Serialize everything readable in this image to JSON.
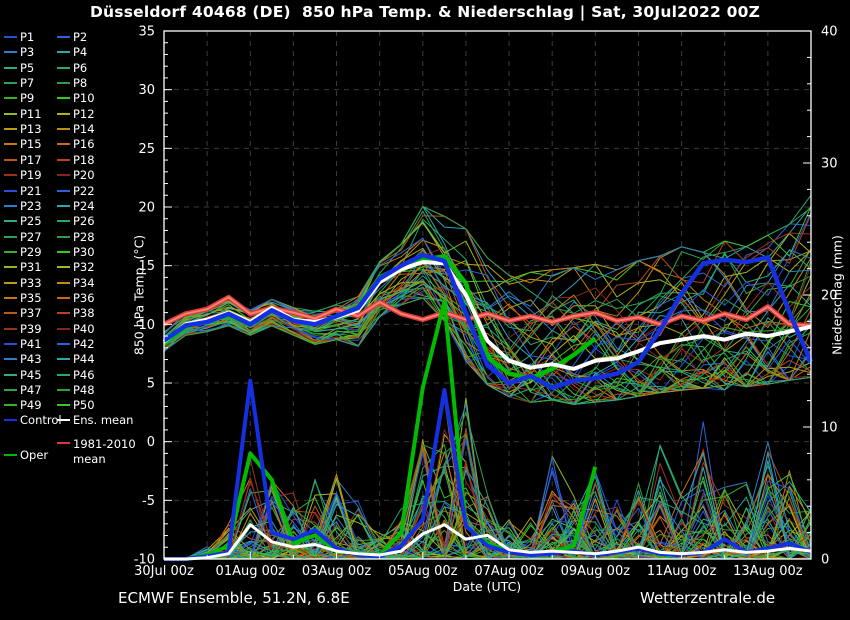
{
  "title": "Düsseldorf 40468 (DE)  850 hPa Temp. & Niederschlag | Sat, 30Jul2022 00Z",
  "footer": {
    "left": "ECMWF Ensemble, 51.2N, 6.8E",
    "right": "Wetterzentrale.de"
  },
  "axes": {
    "x_label": "Date (UTC)",
    "y_left_label": "850 hPa Temp. (°C)",
    "y_right_label": "Niederschlag (mm)",
    "y_left_ticks": [
      35,
      30,
      25,
      20,
      15,
      10,
      5,
      0,
      -5,
      -10
    ],
    "y_right_ticks": [
      40,
      30,
      20,
      10,
      0
    ],
    "x_ticks": [
      {
        "day": 0,
        "label": "30Jul 00z"
      },
      {
        "day": 2,
        "label": "01Aug 00z"
      },
      {
        "day": 4,
        "label": "03Aug 00z"
      },
      {
        "day": 6,
        "label": "05Aug 00z"
      },
      {
        "day": 8,
        "label": "07Aug 00z"
      },
      {
        "day": 10,
        "label": "09Aug 00z"
      },
      {
        "day": 12,
        "label": "11Aug 00z"
      },
      {
        "day": 14,
        "label": "13Aug 00z"
      }
    ]
  },
  "legend": {
    "members": [
      "P1",
      "P2",
      "P3",
      "P4",
      "P5",
      "P6",
      "P7",
      "P8",
      "P9",
      "P10",
      "P11",
      "P12",
      "P13",
      "P14",
      "P15",
      "P16",
      "P17",
      "P18",
      "P19",
      "P20",
      "P21",
      "P22",
      "P23",
      "P24",
      "P25",
      "P26",
      "P27",
      "P28",
      "P29",
      "P30",
      "P31",
      "P32",
      "P33",
      "P34",
      "P35",
      "P36",
      "P37",
      "P38",
      "P39",
      "P40",
      "P41",
      "P42",
      "P43",
      "P44",
      "P45",
      "P46",
      "P47",
      "P48",
      "P49",
      "P50"
    ],
    "control_label": "Control",
    "ens_mean_label": "Ens. mean",
    "clim_label_line1": "1981-2010",
    "clim_label_line2": "mean",
    "oper_label": "Oper"
  },
  "colors": {
    "background": "#000000",
    "frame": "#ffffff",
    "grid": "#3c3c3c",
    "control": "#1430e0",
    "ens_mean": "#ffffff",
    "oper": "#00bb00",
    "clim": "#d83c3c",
    "clim_core": "#ff8070",
    "member_cycle": [
      "#2750d8",
      "#2d62dc",
      "#2f7cc8",
      "#2fa3b4",
      "#2baa8e",
      "#27a76c",
      "#2aa44e",
      "#2ea238",
      "#38ae2c",
      "#3fc32a",
      "#8fba20",
      "#aeb41e",
      "#b89e16",
      "#bd8c12",
      "#c47a10",
      "#c86a10",
      "#c25614",
      "#b44518",
      "#9e3020",
      "#882222"
    ]
  },
  "chart_data": {
    "type": "line",
    "title": "Düsseldorf 40468 (DE) 850 hPa Temp. & Niederschlag, ECMWF ensemble meteogram, run Sat 30Jul2022 00Z",
    "x_unit": "days since 30Jul2022 00Z",
    "x_start": 0,
    "x_step": 0.5,
    "x_range": [
      0,
      15
    ],
    "temp_axis_range": [
      -10,
      35
    ],
    "precip_axis_range": [
      0,
      40
    ],
    "grid": "dashed, every day vertical, every 5°C horizontal",
    "legend_position": "left outside",
    "ensemble_member_count": 50,
    "rng_seed": 1234,
    "series": {
      "temp_ens_mean": [
        8.5,
        10.0,
        10.4,
        11.0,
        10.2,
        11.4,
        10.4,
        10.2,
        10.6,
        11.2,
        13.6,
        14.7,
        15.3,
        15.2,
        12.5,
        8.6,
        6.9,
        6.3,
        6.6,
        6.2,
        6.9,
        7.1,
        7.7,
        8.4,
        8.7,
        9.0,
        8.7,
        9.2,
        9.0,
        9.4,
        9.8
      ],
      "temp_control": [
        8.6,
        9.9,
        10.2,
        10.9,
        10.0,
        11.2,
        10.3,
        10.0,
        10.7,
        11.4,
        13.9,
        15.0,
        15.9,
        15.4,
        11.0,
        6.5,
        5.0,
        5.6,
        4.6,
        5.2,
        5.4,
        5.8,
        6.8,
        9.5,
        12.6,
        15.2,
        15.5,
        15.3,
        15.7,
        11.0,
        6.8
      ],
      "temp_oper": [
        8.3,
        9.8,
        10.3,
        10.8,
        10.1,
        11.3,
        10.4,
        10.1,
        10.6,
        11.5,
        14.0,
        14.9,
        15.5,
        15.8,
        13.5,
        7.2,
        5.8,
        5.4,
        6.2,
        7.4,
        8.8
      ],
      "temp_clim_1981_2010": [
        10.0,
        10.9,
        11.3,
        12.3,
        10.9,
        11.4,
        11.0,
        10.5,
        11.3,
        10.7,
        11.9,
        10.9,
        10.4,
        11.0,
        10.4,
        10.9,
        10.3,
        10.7,
        10.2,
        10.7,
        11.0,
        10.3,
        10.6,
        10.0,
        10.7,
        10.3,
        10.9,
        10.4,
        11.5,
        10.0,
        9.9
      ],
      "precip_ens_mean": [
        0,
        0,
        0.1,
        0.4,
        2.6,
        1.3,
        0.9,
        1.1,
        0.6,
        0.4,
        0.3,
        0.6,
        1.9,
        2.6,
        1.5,
        1.8,
        0.7,
        0.5,
        0.6,
        0.5,
        0.4,
        0.6,
        0.9,
        0.5,
        0.4,
        0.5,
        0.7,
        0.5,
        0.6,
        0.8,
        0.6
      ],
      "precip_control": [
        0,
        0,
        0.2,
        0.5,
        13.5,
        2.0,
        1.5,
        2.2,
        0.8,
        0.3,
        0.2,
        1.0,
        3.0,
        12.8,
        2.5,
        1.0,
        0.5,
        0.3,
        0.4,
        0.6,
        0.3,
        0.5,
        0.8,
        0.4,
        0.3,
        0.5,
        1.5,
        0.5,
        0.8,
        1.2,
        0.5
      ],
      "precip_oper": [
        0,
        0,
        0.3,
        1.0,
        8.0,
        6.0,
        1.2,
        1.8,
        0.6,
        0.4,
        0.3,
        2.0,
        13.0,
        19.5,
        2.5,
        1.2,
        0.6,
        0.4,
        0.5,
        1.0,
        7.0
      ]
    },
    "envelopes": {
      "temp_members_min": [
        7.6,
        9.0,
        9.3,
        9.8,
        9.0,
        9.8,
        9.0,
        8.2,
        8.6,
        8.0,
        10.5,
        11.5,
        12.0,
        10.0,
        6.5,
        4.5,
        3.5,
        3.0,
        3.2,
        2.8,
        3.0,
        3.2,
        3.5,
        3.8,
        4.0,
        4.2,
        4.0,
        4.3,
        4.5,
        4.8,
        5.0
      ],
      "temp_members_max": [
        9.4,
        11.0,
        11.5,
        12.2,
        11.3,
        12.2,
        11.5,
        11.2,
        11.8,
        12.5,
        15.5,
        17.0,
        20.3,
        19.5,
        18.5,
        16.0,
        14.5,
        14.8,
        15.0,
        15.2,
        15.5,
        15.0,
        15.8,
        16.2,
        17.0,
        16.5,
        17.5,
        17.0,
        18.0,
        19.0,
        21.5
      ],
      "precip_members_max": [
        0.3,
        0.4,
        1,
        3,
        8,
        6,
        5,
        6.5,
        6.5,
        4.5,
        2,
        4,
        12,
        13,
        12.5,
        5,
        3,
        4,
        9,
        5,
        7,
        5,
        6,
        9,
        5,
        11,
        6,
        6,
        9,
        7,
        4
      ]
    }
  }
}
